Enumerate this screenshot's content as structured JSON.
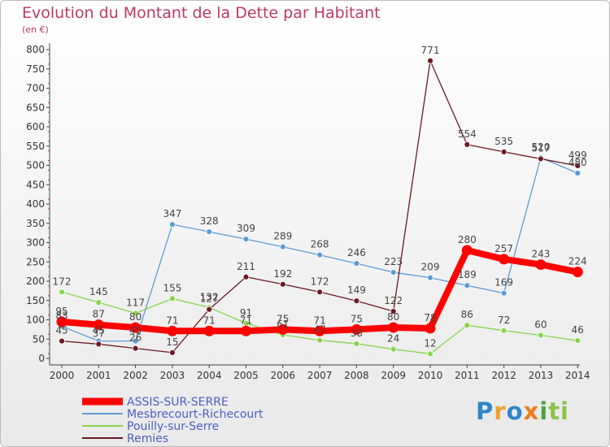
{
  "title": "Evolution du Montant de la Dette par Habitant",
  "subtitle": "(en €)",
  "logo": "Proxiti",
  "chart_data": {
    "type": "line",
    "title": "Evolution du Montant de la Dette par Habitant",
    "ylabel": "(en €)",
    "xlabel": "",
    "ylim": [
      0,
      800
    ],
    "yticks": [
      0,
      50,
      100,
      150,
      200,
      250,
      300,
      350,
      400,
      450,
      500,
      550,
      600,
      650,
      700,
      750,
      800
    ],
    "grid": false,
    "legend_position": "bottom-left",
    "x": [
      "2000",
      "2001",
      "2002",
      "2003",
      "2004",
      "2005",
      "2006",
      "2007",
      "2008",
      "2009",
      "2010",
      "2011",
      "2012",
      "2013",
      "2014"
    ],
    "series": [
      {
        "name": "ASSIS-SUR-SERRE",
        "color": "#ff0000",
        "values": [
          95,
          87,
          80,
          71,
          71,
          71,
          75,
          71,
          75,
          80,
          78,
          280,
          257,
          243,
          224
        ]
      },
      {
        "name": "Mesbrecourt-Richecourt",
        "color": "#5b9bd5",
        "values": [
          83,
          45,
          45,
          347,
          328,
          309,
          289,
          268,
          246,
          223,
          209,
          189,
          169,
          520,
          480
        ]
      },
      {
        "name": "Pouilly-sur-Serre",
        "color": "#86d44a",
        "values": [
          172,
          145,
          117,
          155,
          132,
          91,
          61,
          47,
          38,
          24,
          12,
          86,
          72,
          60,
          46
        ]
      },
      {
        "name": "Remies",
        "color": "#6b1a24",
        "values": [
          45,
          37,
          26,
          15,
          127,
          211,
          192,
          172,
          149,
          122,
          771,
          554,
          535,
          517,
          499
        ]
      }
    ]
  }
}
